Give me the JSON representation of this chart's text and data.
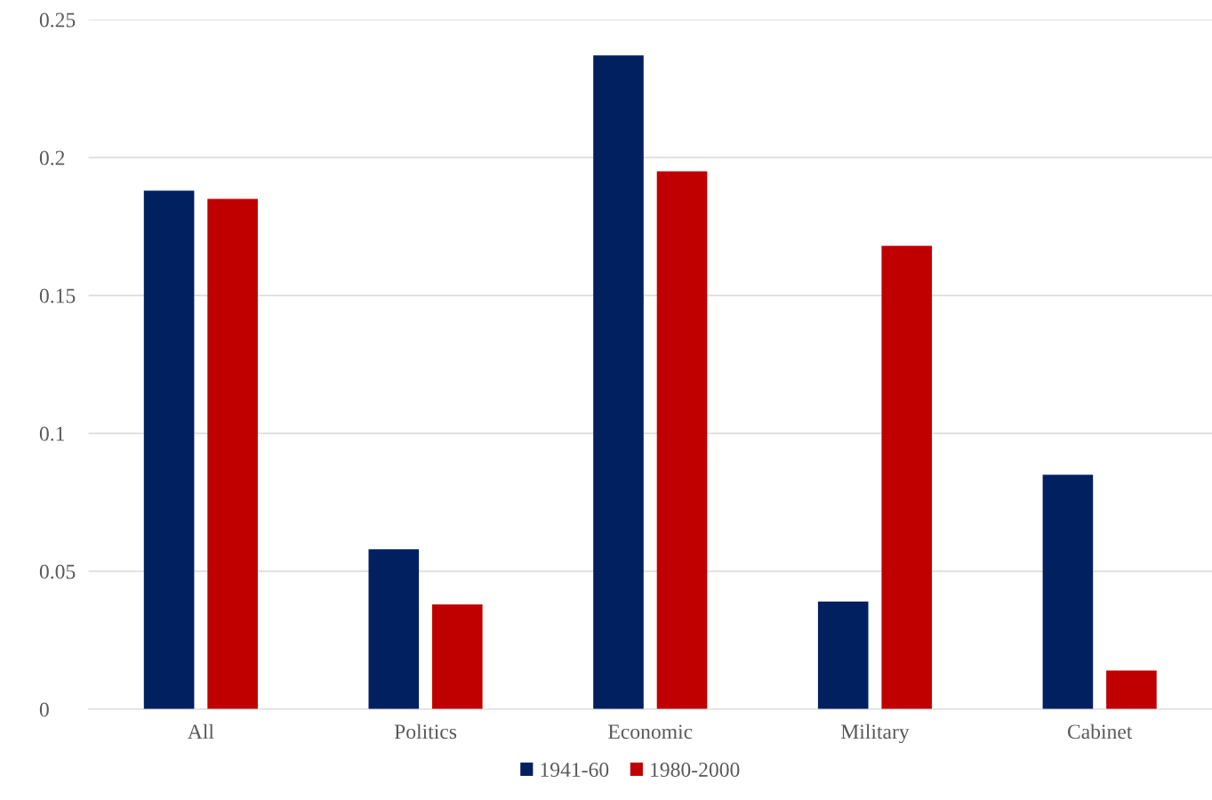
{
  "chart_data": {
    "type": "bar",
    "categories": [
      "All",
      "Politics",
      "Economic",
      "Military",
      "Cabinet"
    ],
    "series": [
      {
        "name": "1941-60",
        "color": "#002060",
        "values": [
          0.188,
          0.058,
          0.237,
          0.039,
          0.085
        ]
      },
      {
        "name": "1980-2000",
        "color": "#c00000",
        "values": [
          0.185,
          0.038,
          0.195,
          0.168,
          0.014
        ]
      }
    ],
    "ylim": [
      0,
      0.25
    ],
    "yticks": [
      0,
      0.05,
      0.1,
      0.15,
      0.2,
      0.25
    ],
    "grid": "y",
    "legend": "bottom"
  }
}
